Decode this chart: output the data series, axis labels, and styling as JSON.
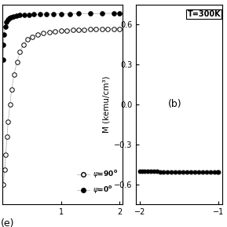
{
  "left_panel": {
    "xlim": [
      0,
      2.05
    ],
    "ylim": [
      0.0,
      0.8
    ],
    "xticks": [
      1,
      2
    ],
    "yticks": [],
    "label_a": "(e)",
    "curve_open_x": [
      0.02,
      0.04,
      0.06,
      0.08,
      0.1,
      0.13,
      0.16,
      0.2,
      0.25,
      0.3,
      0.36,
      0.43,
      0.51,
      0.6,
      0.7,
      0.8,
      0.9,
      1.0,
      1.1,
      1.2,
      1.3,
      1.4,
      1.5,
      1.6,
      1.7,
      1.8,
      1.9,
      2.0
    ],
    "curve_open_y": [
      0.08,
      0.14,
      0.2,
      0.27,
      0.33,
      0.4,
      0.46,
      0.52,
      0.57,
      0.61,
      0.64,
      0.66,
      0.67,
      0.68,
      0.685,
      0.69,
      0.693,
      0.695,
      0.697,
      0.698,
      0.699,
      0.7,
      0.701,
      0.701,
      0.702,
      0.702,
      0.703,
      0.703
    ],
    "curve_filled_x": [
      0.01,
      0.02,
      0.03,
      0.05,
      0.07,
      0.09,
      0.12,
      0.15,
      0.19,
      0.24,
      0.3,
      0.37,
      0.45,
      0.54,
      0.64,
      0.75,
      0.87,
      1.0,
      1.15,
      1.3,
      1.5,
      1.7,
      1.9,
      2.0
    ],
    "curve_filled_y": [
      0.58,
      0.64,
      0.68,
      0.71,
      0.73,
      0.74,
      0.745,
      0.75,
      0.753,
      0.755,
      0.757,
      0.758,
      0.759,
      0.76,
      0.761,
      0.762,
      0.762,
      0.763,
      0.763,
      0.764,
      0.764,
      0.764,
      0.765,
      0.765
    ]
  },
  "right_panel": {
    "ylabel": "M (kemu/cm³)",
    "xlim": [
      -2.05,
      -0.95
    ],
    "ylim": [
      -0.75,
      0.75
    ],
    "xticks": [
      -2,
      -1
    ],
    "yticks": [
      -0.6,
      -0.3,
      0.0,
      0.3,
      0.6
    ],
    "annotation": "T=300K",
    "label_b": "(b)",
    "data_x": [
      -2.0,
      -1.97,
      -1.94,
      -1.9,
      -1.86,
      -1.82,
      -1.78,
      -1.74,
      -1.7,
      -1.65,
      -1.6,
      -1.55,
      -1.5,
      -1.45,
      -1.4,
      -1.35,
      -1.3,
      -1.25,
      -1.2,
      -1.15,
      -1.1,
      -1.05,
      -1.01,
      -1.0
    ],
    "data_y": [
      -0.5,
      -0.5,
      -0.5,
      -0.5,
      -0.5,
      -0.5,
      -0.5,
      -0.505,
      -0.505,
      -0.505,
      -0.505,
      -0.505,
      -0.505,
      -0.505,
      -0.505,
      -0.505,
      -0.505,
      -0.505,
      -0.505,
      -0.505,
      -0.505,
      -0.505,
      -0.505,
      -0.505
    ]
  },
  "background_color": "#ffffff",
  "marker_size": 4,
  "marker_color": "black",
  "line_color": "#aaaaaa"
}
